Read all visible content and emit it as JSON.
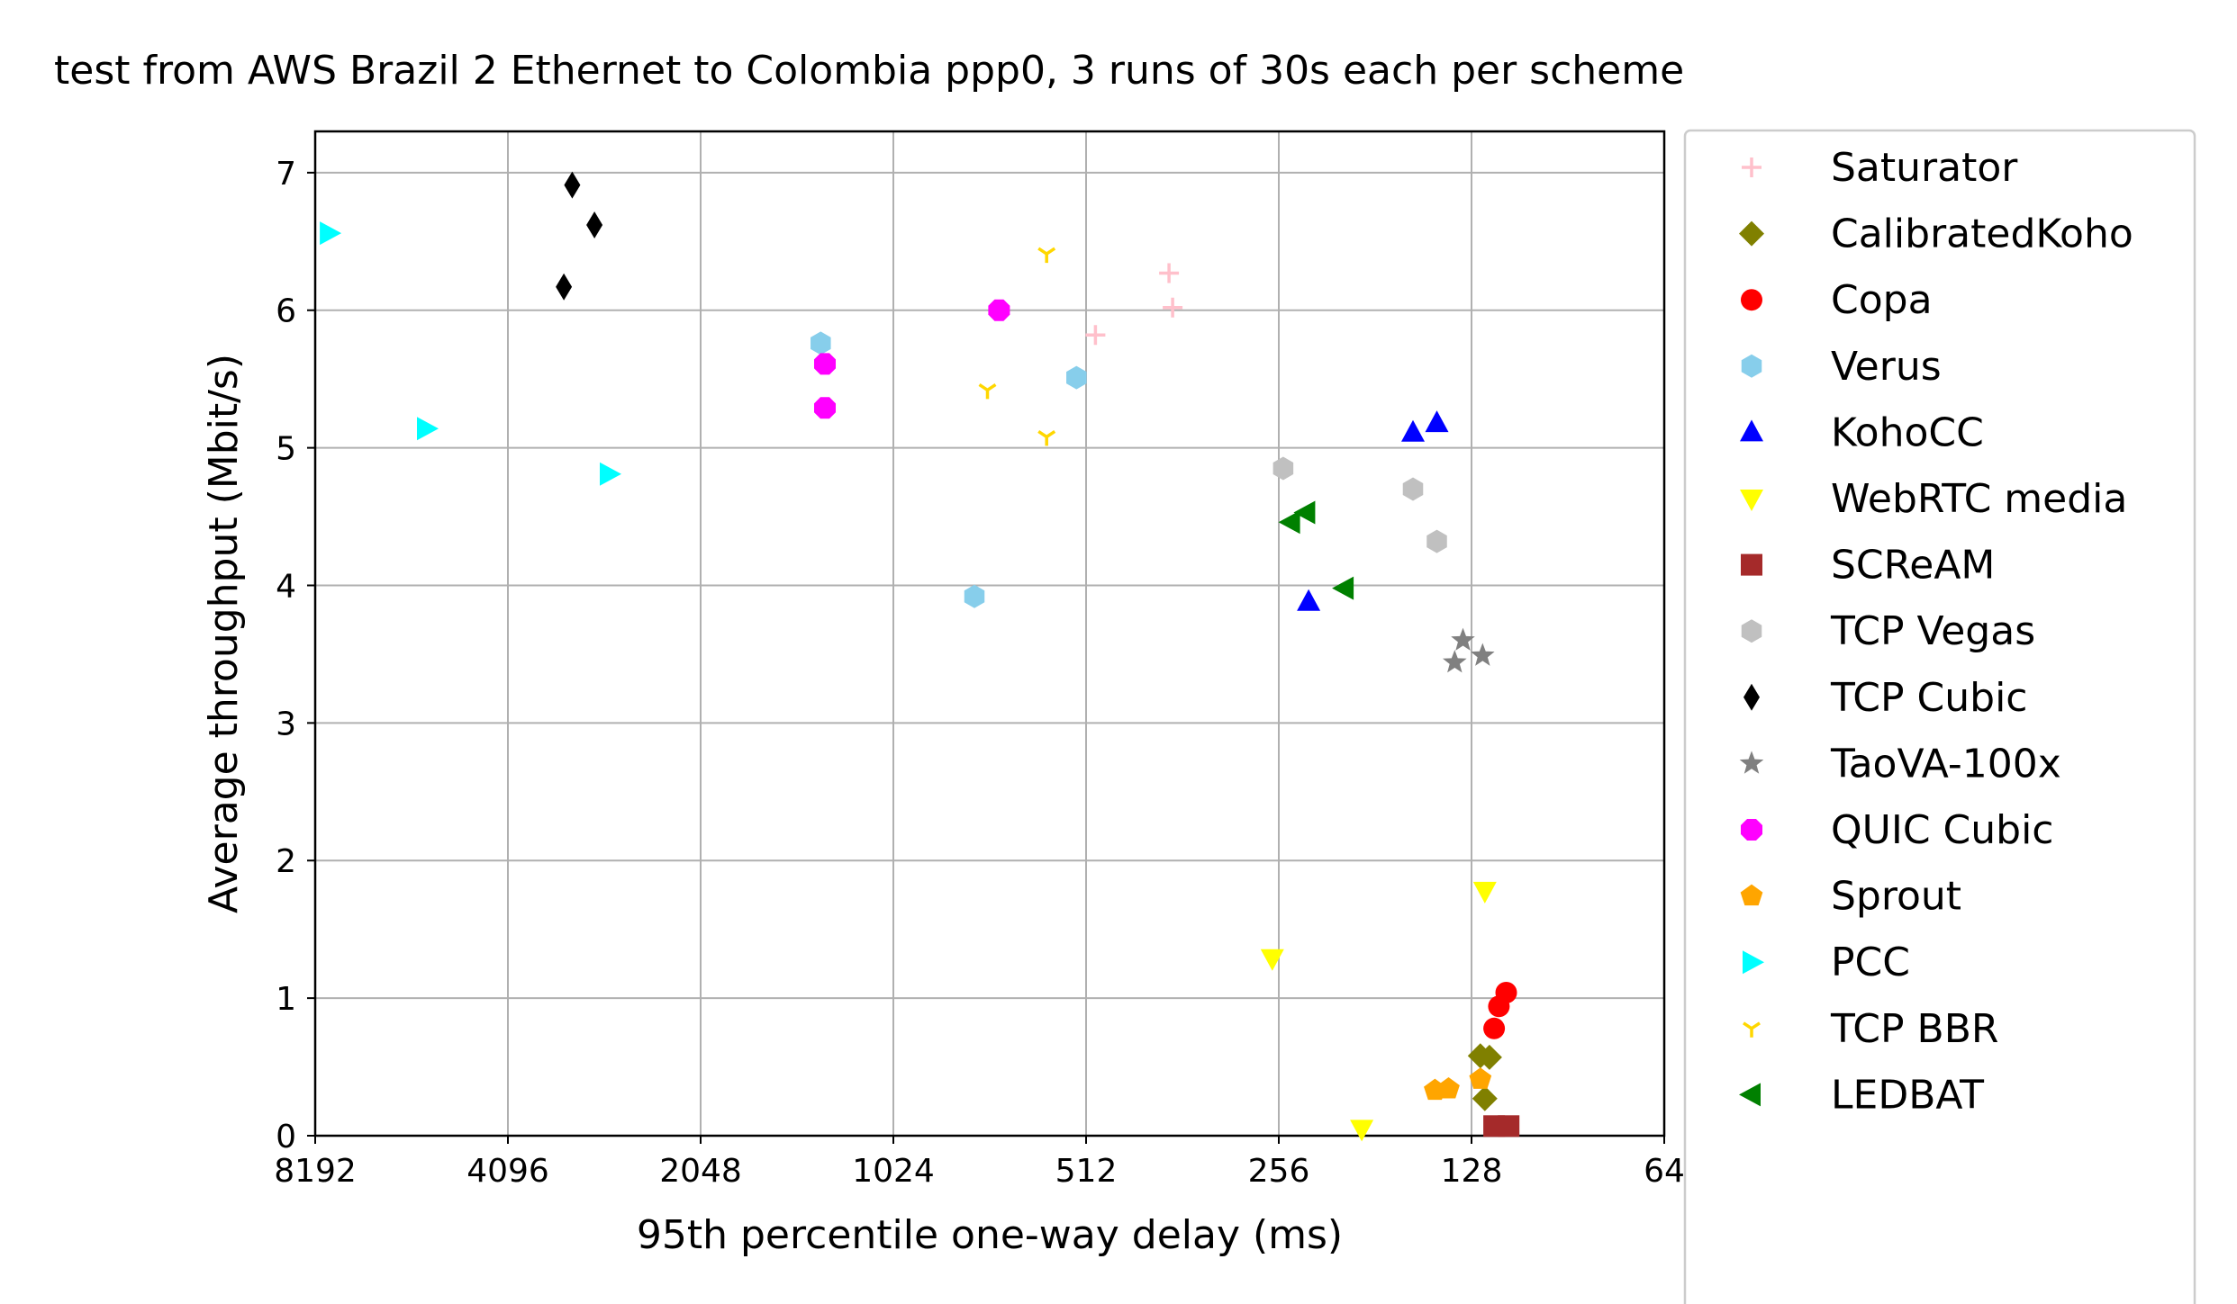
{
  "chart_data": {
    "type": "scatter",
    "title": "test from AWS Brazil 2 Ethernet to Colombia ppp0, 3 runs of 30s each per scheme",
    "xlabel": "95th percentile one-way delay (ms)",
    "ylabel": "Average throughput (Mbit/s)",
    "x_scale": "log2",
    "x_inverted": true,
    "xlim": [
      8192,
      64
    ],
    "ylim": [
      0,
      7.3
    ],
    "x_ticks": [
      8192,
      4096,
      2048,
      1024,
      512,
      256,
      128,
      64
    ],
    "x_tick_labels": [
      "8192",
      "4096",
      "2048",
      "1024",
      "512",
      "256",
      "128",
      "64"
    ],
    "y_ticks": [
      0,
      1,
      2,
      3,
      4,
      5,
      6,
      7
    ],
    "y_tick_labels": [
      "0",
      "1",
      "2",
      "3",
      "4",
      "5",
      "6",
      "7"
    ],
    "grid": true,
    "legend_position": "outside-right",
    "series": [
      {
        "name": "Saturator",
        "color": "#ffc0cb",
        "marker": "plus",
        "points": [
          [
            380,
            6.27
          ],
          [
            375,
            6.02
          ],
          [
            495,
            5.82
          ]
        ]
      },
      {
        "name": "CalibratedKoho",
        "color": "#808000",
        "marker": "diamond",
        "points": [
          [
            124,
            0.58
          ],
          [
            120,
            0.57
          ],
          [
            122,
            0.27
          ]
        ]
      },
      {
        "name": "Copa",
        "color": "#ff0000",
        "marker": "circle",
        "points": [
          [
            113,
            1.04
          ],
          [
            116,
            0.94
          ],
          [
            118,
            0.78
          ]
        ]
      },
      {
        "name": "Verus",
        "color": "#87ceeb",
        "marker": "hexagon",
        "points": [
          [
            1330,
            5.76
          ],
          [
            530,
            5.51
          ],
          [
            765,
            3.92
          ]
        ]
      },
      {
        "name": "KohoCC",
        "color": "#0000ff",
        "marker": "triangle-up",
        "points": [
          [
            145,
            5.18
          ],
          [
            158,
            5.11
          ],
          [
            230,
            3.88
          ]
        ]
      },
      {
        "name": "WebRTC media",
        "color": "#ffff00",
        "marker": "triangle-down",
        "points": [
          [
            122,
            1.78
          ],
          [
            262,
            1.29
          ],
          [
            190,
            0.05
          ]
        ]
      },
      {
        "name": "SCReAM",
        "color": "#a52a2a",
        "marker": "square",
        "points": [
          [
            112,
            0.07
          ],
          [
            118,
            0.07
          ]
        ]
      },
      {
        "name": "TCP Vegas",
        "color": "#c0c0c0",
        "marker": "hexagon",
        "points": [
          [
            252,
            4.85
          ],
          [
            158,
            4.7
          ],
          [
            145,
            4.32
          ]
        ]
      },
      {
        "name": "TCP Cubic",
        "color": "#000000",
        "marker": "thin-diamond",
        "points": [
          [
            3250,
            6.91
          ],
          [
            3000,
            6.62
          ],
          [
            3350,
            6.17
          ]
        ]
      },
      {
        "name": "TaoVA-100x",
        "color": "#808080",
        "marker": "star",
        "points": [
          [
            132,
            3.6
          ],
          [
            123,
            3.49
          ],
          [
            136,
            3.44
          ]
        ]
      },
      {
        "name": "QUIC Cubic",
        "color": "#ff00ff",
        "marker": "octagon",
        "points": [
          [
            700,
            6.0
          ],
          [
            1310,
            5.61
          ],
          [
            1310,
            5.29
          ]
        ]
      },
      {
        "name": "Sprout",
        "color": "#ffa500",
        "marker": "pentagon",
        "points": [
          [
            124,
            0.41
          ],
          [
            139,
            0.34
          ],
          [
            146,
            0.33
          ]
        ]
      },
      {
        "name": "PCC",
        "color": "#00ffff",
        "marker": "triangle-right",
        "points": [
          [
            7800,
            6.56
          ],
          [
            5500,
            5.14
          ],
          [
            2850,
            4.81
          ]
        ]
      },
      {
        "name": "TCP BBR",
        "color": "#ffd700",
        "marker": "tri-down",
        "points": [
          [
            590,
            6.41
          ],
          [
            730,
            5.42
          ],
          [
            590,
            5.08
          ]
        ]
      },
      {
        "name": "LEDBAT",
        "color": "#008000",
        "marker": "triangle-left",
        "points": [
          [
            232,
            4.53
          ],
          [
            245,
            4.46
          ],
          [
            202,
            3.98
          ]
        ]
      }
    ]
  }
}
